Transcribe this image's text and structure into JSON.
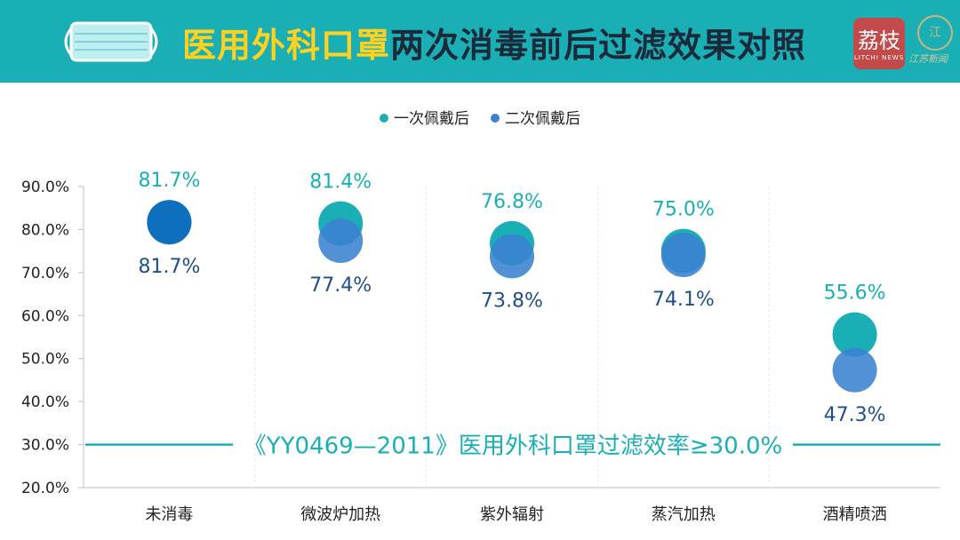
{
  "header": {
    "title_highlight": "医用外科口罩",
    "title_rest": "两次消毒前后过滤效果对照",
    "logo_text": "荔枝",
    "logo_sub": "LITCHI NEWS",
    "seal_char": "江",
    "seal_caption": "江苏新闻"
  },
  "colors": {
    "header_bg": "#1aafb4",
    "title_highlight": "#ffd21f",
    "title_text": "#1b2a3a",
    "series1": "#1aafb4",
    "series2": "#3b82d2",
    "overlap": "#0f6fbf",
    "label1": "#1aafb4",
    "label2": "#1f4f8a",
    "threshold": "#1aafb4"
  },
  "chart_data": {
    "type": "scatter",
    "categories": [
      "未消毒",
      "微波炉加热",
      "紫外辐射",
      "蒸汽加热",
      "酒精喷洒"
    ],
    "series": [
      {
        "name": "一次佩戴后",
        "values": [
          81.7,
          81.4,
          76.8,
          75.0,
          55.6
        ],
        "labels": [
          "81.7%",
          "81.4%",
          "76.8%",
          "75.0%",
          "55.6%"
        ]
      },
      {
        "name": "二次佩戴后",
        "values": [
          81.7,
          77.4,
          73.8,
          74.1,
          47.3
        ],
        "labels": [
          "81.7%",
          "77.4%",
          "73.8%",
          "74.1%",
          "47.3%"
        ]
      }
    ],
    "ylim": [
      20,
      90
    ],
    "yticks": [
      20,
      30,
      40,
      50,
      60,
      70,
      80,
      90
    ],
    "ytick_labels": [
      "20.0%",
      "30.0%",
      "40.0%",
      "50.0%",
      "60.0%",
      "70.0%",
      "80.0%",
      "90.0%"
    ],
    "threshold": {
      "value": 30.0,
      "label": "《YY0469—2011》医用外科口罩过滤效率≥30.0%"
    },
    "legend_position": "top-center",
    "grid": true
  }
}
